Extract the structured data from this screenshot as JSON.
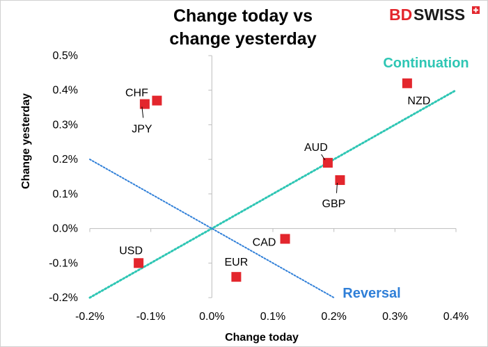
{
  "brand": {
    "name_part1": "BD",
    "name_part2": "SWISS",
    "color_part1": "#e3262d",
    "color_part2": "#1a1a1a",
    "icon": "swiss-cross-icon"
  },
  "chart_data": {
    "type": "scatter",
    "title_lines": [
      "Change today vs",
      "change yesterday"
    ],
    "xlabel": "Change today",
    "ylabel": "Change yesterday",
    "xlim": [
      -0.2,
      0.4
    ],
    "ylim": [
      -0.2,
      0.5
    ],
    "x_ticks": [
      -0.2,
      -0.1,
      0.0,
      0.1,
      0.2,
      0.3,
      0.4
    ],
    "x_tick_labels": [
      "-0.2%",
      "-0.1%",
      "0.0%",
      "0.1%",
      "0.2%",
      "0.3%",
      "0.4%"
    ],
    "y_ticks": [
      -0.2,
      -0.1,
      0.0,
      0.1,
      0.2,
      0.3,
      0.4,
      0.5
    ],
    "y_tick_labels": [
      "-0.2%",
      "-0.1%",
      "0.0%",
      "0.1%",
      "0.2%",
      "0.3%",
      "0.4%",
      "0.5%"
    ],
    "grid": false,
    "point_color": "#e3262d",
    "points": [
      {
        "label": "CHF",
        "x": -0.09,
        "y": 0.37
      },
      {
        "label": "JPY",
        "x": -0.11,
        "y": 0.36
      },
      {
        "label": "AUD",
        "x": 0.19,
        "y": 0.19
      },
      {
        "label": "GBP",
        "x": 0.21,
        "y": 0.14
      },
      {
        "label": "NZD",
        "x": 0.32,
        "y": 0.42
      },
      {
        "label": "CAD",
        "x": 0.12,
        "y": -0.03
      },
      {
        "label": "USD",
        "x": -0.12,
        "y": -0.1
      },
      {
        "label": "EUR",
        "x": 0.04,
        "y": -0.14
      }
    ],
    "reference_lines": [
      {
        "name": "Continuation",
        "color": "#2ec6b4",
        "x": [
          -0.2,
          0.4
        ],
        "y": [
          -0.2,
          0.4
        ]
      },
      {
        "name": "Reversal",
        "color": "#2f7fd8",
        "x": [
          -0.2,
          0.2
        ],
        "y": [
          0.2,
          -0.2
        ]
      }
    ]
  }
}
